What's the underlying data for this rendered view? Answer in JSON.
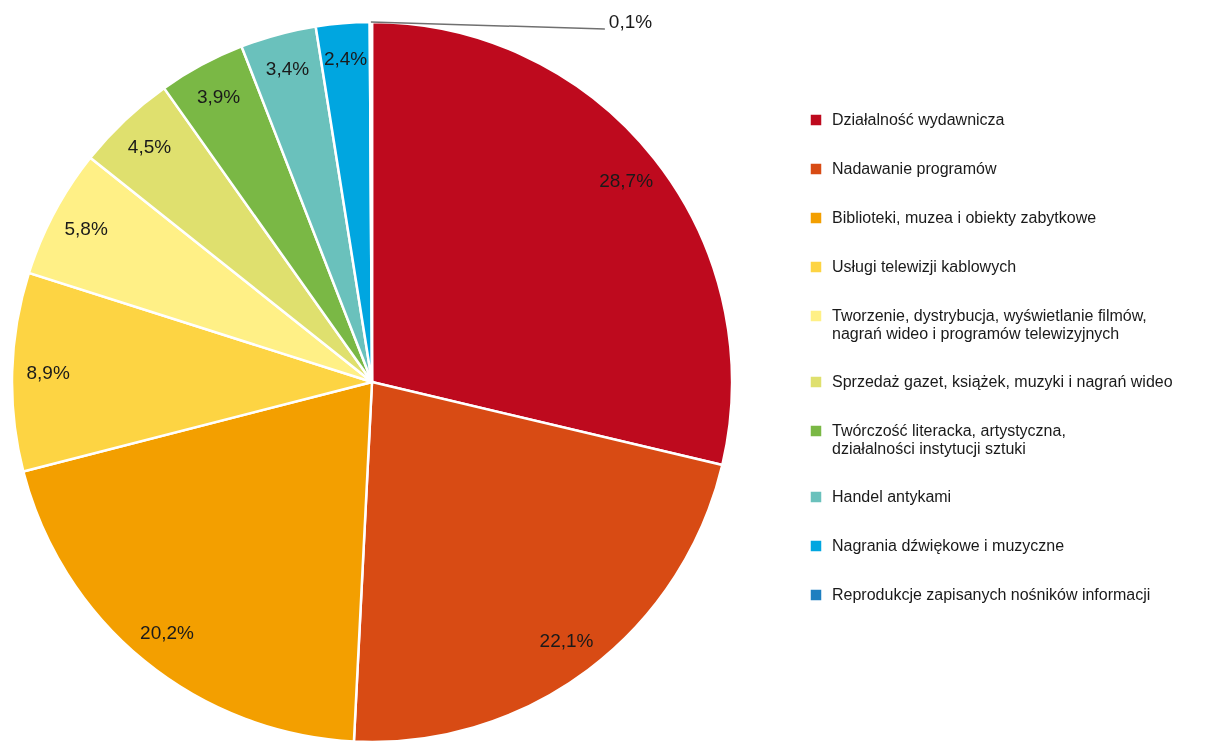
{
  "chart_data": {
    "type": "pie",
    "categories": [
      "Działalność wydawnicza",
      "Nadawanie programów",
      "Biblioteki, muzea i obiekty zabytkowe",
      "Usługi telewizji kablowych",
      "Tworzenie, dystrybucja, wyświetlanie filmów,\nnagrań wideo i programów telewizyjnych",
      "Sprzedaż gazet, książek, muzyki i nagrań wideo",
      "Twórczość literacka, artystyczna,\ndziałalności instytucji sztuki",
      "Handel antykami",
      "Nagrania dźwiękowe i muzyczne",
      "Reprodukcje zapisanych nośników informacji"
    ],
    "values": [
      28.7,
      22.1,
      20.2,
      8.9,
      5.8,
      4.5,
      3.9,
      3.4,
      2.4,
      0.1
    ],
    "colors": [
      "#be0a1e",
      "#d84b14",
      "#f39f00",
      "#fdd443",
      "#fff086",
      "#dfe06e",
      "#7ab845",
      "#6ac1bc",
      "#00a6e0",
      "#1e7fc0"
    ],
    "value_labels": [
      "28,7%",
      "22,1%",
      "20,2%",
      "8,9%",
      "5,8%",
      "4,5%",
      "3,9%",
      "3,4%",
      "2,4%",
      "0,1%"
    ],
    "legend": "right"
  }
}
